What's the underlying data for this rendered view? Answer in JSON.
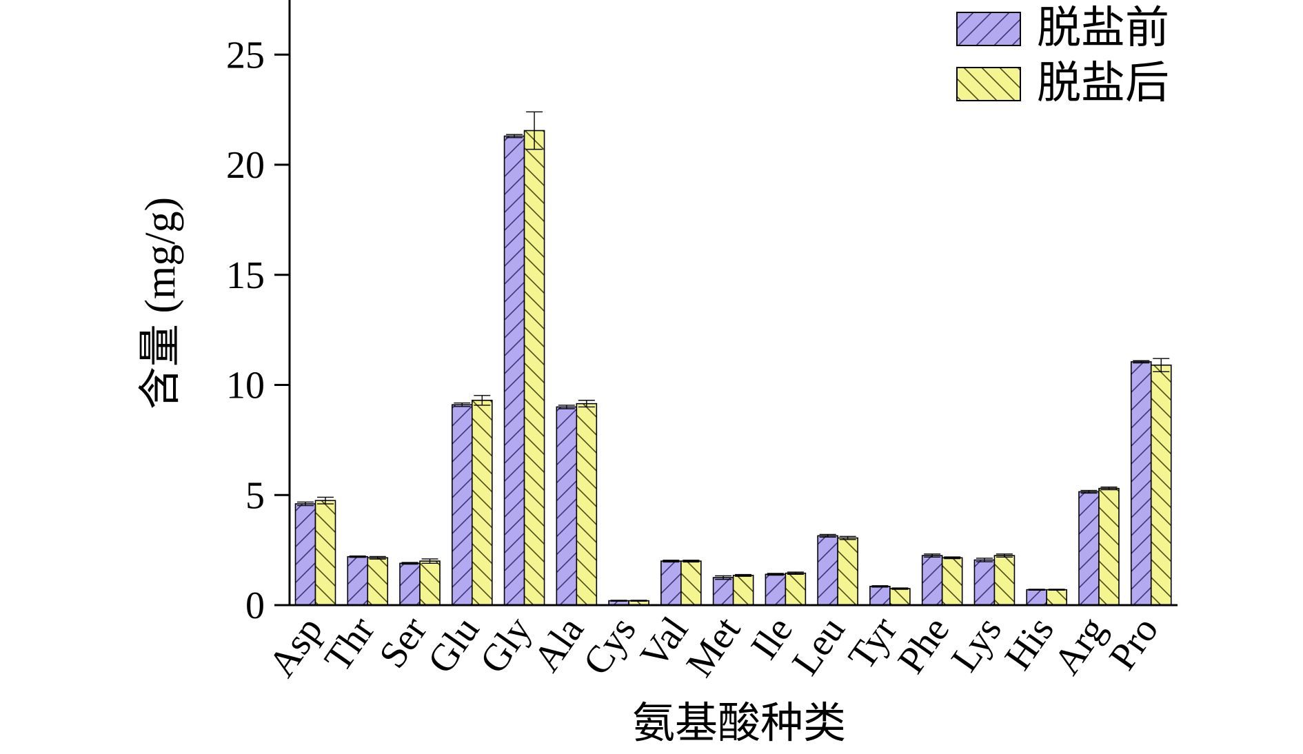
{
  "chart_data": {
    "type": "bar",
    "title": "",
    "xlabel": "氨基酸种类",
    "ylabel": "含量 (mg/g)",
    "ylim": [
      0,
      27.5
    ],
    "yticks": [
      "0",
      "5",
      "10",
      "15",
      "20",
      "25"
    ],
    "categories": [
      "Asp",
      "Thr",
      "Ser",
      "Glu",
      "Gly",
      "Ala",
      "Cys",
      "Val",
      "Met",
      "Ile",
      "Leu",
      "Tyr",
      "Phe",
      "Lys",
      "His",
      "Arg",
      "Pro"
    ],
    "series": [
      {
        "name": "脱盐前",
        "color": "#b3a9f0",
        "hatch": "forward-diagonal",
        "values": [
          4.6,
          2.2,
          1.9,
          9.1,
          21.3,
          9.0,
          0.2,
          2.0,
          1.25,
          1.4,
          3.15,
          0.85,
          2.25,
          2.05,
          0.7,
          5.15,
          11.05
        ],
        "errors": [
          0.08,
          0.03,
          0.04,
          0.08,
          0.07,
          0.08,
          0.02,
          0.04,
          0.08,
          0.04,
          0.06,
          0.03,
          0.07,
          0.08,
          0.02,
          0.06,
          0.05
        ]
      },
      {
        "name": "脱盐后",
        "color": "#f4f590",
        "hatch": "backward-diagonal",
        "values": [
          4.75,
          2.15,
          2.0,
          9.3,
          21.55,
          9.15,
          0.2,
          2.0,
          1.35,
          1.45,
          3.05,
          0.75,
          2.15,
          2.25,
          0.7,
          5.3,
          10.9
        ],
        "errors": [
          0.15,
          0.06,
          0.1,
          0.22,
          0.85,
          0.15,
          0.02,
          0.04,
          0.04,
          0.05,
          0.07,
          0.03,
          0.04,
          0.07,
          0.02,
          0.06,
          0.3
        ]
      }
    ],
    "legend": {
      "position": "top-right"
    },
    "grid": false
  }
}
